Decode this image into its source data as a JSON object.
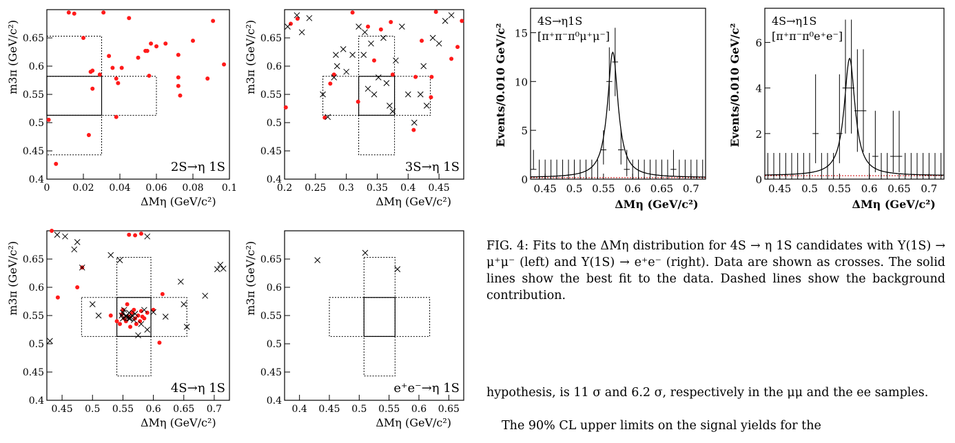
{
  "text": {
    "caption": "FIG. 4: Fits to the ΔMη distribution for 4S → η 1S candidates with Υ(1S) → μ⁺μ⁻ (left) and Υ(1S) → e⁺e⁻ (right). Data are shown as crosses. The solid lines show the best fit to the data. Dashed lines show the background contribution.",
    "paragraph_1": "hypothesis, is 11 σ and 6.2 σ, respectively in the μμ and the ee samples.",
    "paragraph_2": "The 90% CL upper limits on the signal yields for the"
  },
  "colors": {
    "signal_points": "#ff1a1a",
    "background_points": "#000000",
    "bkg_line": "#cc0000"
  },
  "chart_data": [
    {
      "type": "scatter",
      "label": "2S→η 1S",
      "xlabel": "ΔMη   (GeV/c²)",
      "ylabel": "m3π   (GeV/c²)",
      "xlim": [
        0,
        0.1
      ],
      "ylim": [
        0.4,
        0.7
      ],
      "xticks": [
        "0",
        "0.02",
        "0.04",
        "0.06",
        "0.08",
        "0.1"
      ],
      "yticks": [
        "0.4",
        "0.45",
        "0.5",
        "0.55",
        "0.6",
        "0.65"
      ],
      "boxes": {
        "solid": [
          0,
          0.03,
          0.513,
          0.582
        ],
        "dotted": [
          [
            0,
            0.03,
            0.443,
            0.653
          ],
          [
            0,
            0.06,
            0.513,
            0.582
          ]
        ]
      },
      "series": [
        {
          "marker": "dot",
          "x": [
            0.001,
            0.005,
            0.012,
            0.015,
            0.02,
            0.023,
            0.024,
            0.025,
            0.025,
            0.029,
            0.031,
            0.034,
            0.036,
            0.038,
            0.038,
            0.039,
            0.041,
            0.045,
            0.05,
            0.054,
            0.055,
            0.057,
            0.056,
            0.06,
            0.065,
            0.072,
            0.072,
            0.072,
            0.073,
            0.08,
            0.088,
            0.091,
            0.097
          ],
          "y": [
            0.505,
            0.427,
            0.695,
            0.693,
            0.65,
            0.478,
            0.59,
            0.592,
            0.56,
            0.585,
            0.695,
            0.618,
            0.597,
            0.578,
            0.51,
            0.57,
            0.597,
            0.685,
            0.615,
            0.627,
            0.627,
            0.64,
            0.583,
            0.635,
            0.64,
            0.62,
            0.58,
            0.565,
            0.548,
            0.645,
            0.578,
            0.68,
            0.603
          ]
        }
      ]
    },
    {
      "type": "scatter",
      "label": "3S→η 1S",
      "xlabel": "ΔMη   (GeV/c²)",
      "ylabel": "m3π   (GeV/c²)",
      "xlim": [
        0.2,
        0.49
      ],
      "ylim": [
        0.4,
        0.7
      ],
      "xticks": [
        "0.2",
        "0.25",
        "0.3",
        "0.35",
        "0.4",
        "0.45"
      ],
      "yticks": [
        "0.4",
        "0.45",
        "0.5",
        "0.55",
        "0.6",
        "0.65"
      ],
      "boxes": {
        "solid": [
          0.32,
          0.378,
          0.513,
          0.582
        ],
        "dotted": [
          [
            0.32,
            0.378,
            0.443,
            0.653
          ],
          [
            0.262,
            0.436,
            0.513,
            0.582
          ]
        ]
      },
      "series": [
        {
          "marker": "dot",
          "x": [
            0.202,
            0.21,
            0.221,
            0.265,
            0.274,
            0.28,
            0.31,
            0.319,
            0.335,
            0.345,
            0.356,
            0.372,
            0.375,
            0.409,
            0.412,
            0.422,
            0.437,
            0.438,
            0.445,
            0.47,
            0.48,
            0.487
          ],
          "y": [
            0.527,
            0.675,
            0.684,
            0.509,
            0.569,
            0.585,
            0.695,
            0.537,
            0.67,
            0.61,
            0.665,
            0.678,
            0.585,
            0.487,
            0.581,
            0.645,
            0.545,
            0.581,
            0.696,
            0.613,
            0.634,
            0.68
          ]
        },
        {
          "marker": "cross",
          "x": [
            0.205,
            0.22,
            0.228,
            0.24,
            0.262,
            0.27,
            0.28,
            0.283,
            0.285,
            0.295,
            0.3,
            0.31,
            0.32,
            0.328,
            0.33,
            0.335,
            0.34,
            0.345,
            0.352,
            0.36,
            0.365,
            0.37,
            0.375,
            0.38,
            0.39,
            0.4,
            0.41,
            0.42,
            0.425,
            0.43,
            0.44,
            0.45,
            0.46,
            0.47
          ],
          "y": [
            0.67,
            0.69,
            0.66,
            0.685,
            0.55,
            0.51,
            0.58,
            0.62,
            0.6,
            0.63,
            0.59,
            0.62,
            0.67,
            0.62,
            0.66,
            0.56,
            0.64,
            0.55,
            0.58,
            0.65,
            0.57,
            0.53,
            0.52,
            0.61,
            0.67,
            0.55,
            0.5,
            0.55,
            0.6,
            0.53,
            0.65,
            0.64,
            0.68,
            0.69
          ]
        }
      ]
    },
    {
      "type": "scatter",
      "label": "4S→η 1S",
      "xlabel": "ΔMη   (GeV/c²)",
      "ylabel": "m3π   (GeV/c²)",
      "xlim": [
        0.425,
        0.725
      ],
      "ylim": [
        0.4,
        0.7
      ],
      "xticks": [
        "0.45",
        "0.5",
        "0.55",
        "0.6",
        "0.65",
        "0.7"
      ],
      "yticks": [
        "0.4",
        "0.45",
        "0.5",
        "0.55",
        "0.6",
        "0.65"
      ],
      "boxes": {
        "solid": [
          0.54,
          0.596,
          0.513,
          0.582
        ],
        "dotted": [
          [
            0.54,
            0.596,
            0.443,
            0.653
          ],
          [
            0.482,
            0.655,
            0.513,
            0.582
          ]
        ]
      },
      "series": [
        {
          "marker": "dot",
          "x": [
            0.433,
            0.443,
            0.475,
            0.483,
            0.53,
            0.54,
            0.545,
            0.548,
            0.55,
            0.552,
            0.555,
            0.557,
            0.56,
            0.562,
            0.565,
            0.568,
            0.57,
            0.572,
            0.575,
            0.578,
            0.58,
            0.582,
            0.585,
            0.59,
            0.6,
            0.61,
            0.615,
            0.56,
            0.57,
            0.58
          ],
          "y": [
            0.7,
            0.582,
            0.6,
            0.635,
            0.55,
            0.54,
            0.535,
            0.552,
            0.56,
            0.545,
            0.54,
            0.57,
            0.548,
            0.53,
            0.555,
            0.56,
            0.545,
            0.535,
            0.55,
            0.54,
            0.558,
            0.548,
            0.545,
            0.555,
            0.56,
            0.502,
            0.588,
            0.693,
            0.692,
            0.695
          ],
          "note": "cluster near signal region"
        },
        {
          "marker": "cross",
          "x": [
            0.43,
            0.442,
            0.455,
            0.47,
            0.475,
            0.483,
            0.5,
            0.51,
            0.53,
            0.545,
            0.548,
            0.55,
            0.552,
            0.555,
            0.558,
            0.56,
            0.562,
            0.565,
            0.568,
            0.57,
            0.575,
            0.58,
            0.585,
            0.59,
            0.6,
            0.62,
            0.645,
            0.65,
            0.655,
            0.685,
            0.705,
            0.71,
            0.715,
            0.55,
            0.56,
            0.59
          ],
          "y": [
            0.505,
            0.693,
            0.69,
            0.667,
            0.68,
            0.635,
            0.57,
            0.55,
            0.657,
            0.648,
            0.55,
            0.545,
            0.56,
            0.548,
            0.547,
            0.555,
            0.545,
            0.55,
            0.542,
            0.553,
            0.515,
            0.535,
            0.56,
            0.525,
            0.556,
            0.548,
            0.61,
            0.57,
            0.53,
            0.585,
            0.632,
            0.64,
            0.633,
            0.555,
            0.545,
            0.69
          ]
        }
      ]
    },
    {
      "type": "scatter",
      "label": "e⁺e⁻→η 1S",
      "xlabel": "ΔMη   (GeV/c²)",
      "ylabel": "m3π   (GeV/c²)",
      "xlim": [
        0.375,
        0.675
      ],
      "ylim": [
        0.4,
        0.7
      ],
      "xticks": [
        "0.4",
        "0.45",
        "0.5",
        "0.55",
        "0.6",
        "0.65"
      ],
      "yticks": [
        "0.4",
        "0.45",
        "0.5",
        "0.55",
        "0.6",
        "0.65"
      ],
      "boxes": {
        "solid": [
          0.508,
          0.56,
          0.513,
          0.582
        ],
        "dotted": [
          [
            0.508,
            0.56,
            0.443,
            0.653
          ],
          [
            0.45,
            0.618,
            0.513,
            0.582
          ]
        ]
      },
      "series": [
        {
          "marker": "cross",
          "x": [
            0.43,
            0.51,
            0.564
          ],
          "y": [
            0.648,
            0.661,
            0.632
          ]
        }
      ]
    },
    {
      "type": "line",
      "label": "4S→η1S",
      "sublabel": "[π⁺π⁻π⁰μ⁺μ⁻]",
      "xlabel": "ΔMη (GeV/c²)",
      "ylabel": "Events/0.010 GeV/c²",
      "xlim": [
        0.425,
        0.725
      ],
      "ylim": [
        0,
        17.5
      ],
      "xticks": [
        "0.45",
        "0.5",
        "0.55",
        "0.6",
        "0.65",
        "0.7"
      ],
      "yticks": [
        "0",
        "5",
        "10",
        "15"
      ],
      "points": [
        {
          "x": 0.43,
          "y": 1,
          "err": [
            1,
            3
          ]
        },
        {
          "x": 0.44,
          "y": 0,
          "err": [
            0,
            2
          ]
        },
        {
          "x": 0.45,
          "y": 0,
          "err": [
            0,
            2
          ]
        },
        {
          "x": 0.46,
          "y": 0,
          "err": [
            0,
            2
          ]
        },
        {
          "x": 0.47,
          "y": 0,
          "err": [
            0,
            2
          ]
        },
        {
          "x": 0.48,
          "y": 0,
          "err": [
            0,
            2
          ]
        },
        {
          "x": 0.49,
          "y": 0,
          "err": [
            0,
            2
          ]
        },
        {
          "x": 0.5,
          "y": 0,
          "err": [
            0,
            2
          ]
        },
        {
          "x": 0.51,
          "y": 0,
          "err": [
            0,
            2
          ]
        },
        {
          "x": 0.52,
          "y": 0,
          "err": [
            0,
            2
          ]
        },
        {
          "x": 0.53,
          "y": 0,
          "err": [
            0,
            2
          ]
        },
        {
          "x": 0.54,
          "y": 0,
          "err": [
            0,
            2
          ]
        },
        {
          "x": 0.55,
          "y": 3,
          "err": [
            1.5,
            5
          ]
        },
        {
          "x": 0.56,
          "y": 10,
          "err": [
            7,
            13.5
          ]
        },
        {
          "x": 0.57,
          "y": 12,
          "err": [
            8.5,
            15.5
          ]
        },
        {
          "x": 0.58,
          "y": 3,
          "err": [
            1.5,
            5
          ]
        },
        {
          "x": 0.59,
          "y": 1,
          "err": [
            0.3,
            3
          ]
        },
        {
          "x": 0.6,
          "y": 0,
          "err": [
            0,
            2
          ]
        },
        {
          "x": 0.61,
          "y": 0,
          "err": [
            0,
            2
          ]
        },
        {
          "x": 0.62,
          "y": 0,
          "err": [
            0,
            2
          ]
        },
        {
          "x": 0.63,
          "y": 0,
          "err": [
            0,
            2
          ]
        },
        {
          "x": 0.64,
          "y": 0,
          "err": [
            0,
            2
          ]
        },
        {
          "x": 0.65,
          "y": 0,
          "err": [
            0,
            2
          ]
        },
        {
          "x": 0.66,
          "y": 0,
          "err": [
            0,
            2
          ]
        },
        {
          "x": 0.67,
          "y": 1,
          "err": [
            0.3,
            3
          ]
        },
        {
          "x": 0.68,
          "y": 0,
          "err": [
            0,
            2
          ]
        },
        {
          "x": 0.69,
          "y": 0,
          "err": [
            0,
            2
          ]
        },
        {
          "x": 0.7,
          "y": 0,
          "err": [
            0,
            2
          ]
        },
        {
          "x": 0.71,
          "y": 0,
          "err": [
            0,
            2
          ]
        },
        {
          "x": 0.72,
          "y": 0,
          "err": [
            0,
            2
          ]
        }
      ],
      "fit": {
        "peak_x": 0.566,
        "peak_y": 13,
        "width": 0.011,
        "background": 0.15
      }
    },
    {
      "type": "line",
      "label": "4S→η1S",
      "sublabel": "[π⁺π⁻π⁰e⁺e⁻]",
      "xlabel": "ΔMη (GeV/c²)",
      "ylabel": "Events/0.010 GeV/c²",
      "xlim": [
        0.425,
        0.725
      ],
      "ylim": [
        0,
        7.5
      ],
      "xticks": [
        "0.45",
        "0.5",
        "0.55",
        "0.6",
        "0.65",
        "0.7"
      ],
      "yticks": [
        "0",
        "2",
        "4",
        "6"
      ],
      "points": [
        {
          "x": 0.43,
          "y": 0,
          "err": [
            0,
            1.15
          ]
        },
        {
          "x": 0.44,
          "y": 0,
          "err": [
            0,
            1.15
          ]
        },
        {
          "x": 0.45,
          "y": 0,
          "err": [
            0,
            1.15
          ]
        },
        {
          "x": 0.46,
          "y": 0,
          "err": [
            0,
            1.15
          ]
        },
        {
          "x": 0.47,
          "y": 0,
          "err": [
            0,
            1.15
          ]
        },
        {
          "x": 0.48,
          "y": 0,
          "err": [
            0,
            1.15
          ]
        },
        {
          "x": 0.49,
          "y": 0,
          "err": [
            0,
            1.15
          ]
        },
        {
          "x": 0.5,
          "y": 0,
          "err": [
            0,
            1.15
          ]
        },
        {
          "x": 0.51,
          "y": 2,
          "err": [
            0.7,
            4.6
          ]
        },
        {
          "x": 0.52,
          "y": 0,
          "err": [
            0,
            1.15
          ]
        },
        {
          "x": 0.53,
          "y": 0,
          "err": [
            0,
            1.15
          ]
        },
        {
          "x": 0.54,
          "y": 0,
          "err": [
            0,
            1.15
          ]
        },
        {
          "x": 0.55,
          "y": 2,
          "err": [
            0.7,
            4.6
          ]
        },
        {
          "x": 0.56,
          "y": 4,
          "err": [
            2,
            7
          ]
        },
        {
          "x": 0.57,
          "y": 4,
          "err": [
            2,
            7
          ]
        },
        {
          "x": 0.58,
          "y": 3,
          "err": [
            1.2,
            5.7
          ]
        },
        {
          "x": 0.59,
          "y": 3,
          "err": [
            1.2,
            5.7
          ]
        },
        {
          "x": 0.6,
          "y": 0,
          "err": [
            0,
            1.15
          ]
        },
        {
          "x": 0.61,
          "y": 1,
          "err": [
            0.3,
            3
          ]
        },
        {
          "x": 0.62,
          "y": 0,
          "err": [
            0,
            1.15
          ]
        },
        {
          "x": 0.63,
          "y": 0,
          "err": [
            0,
            1.15
          ]
        },
        {
          "x": 0.64,
          "y": 1,
          "err": [
            0.3,
            3
          ]
        },
        {
          "x": 0.65,
          "y": 1,
          "err": [
            0.3,
            3
          ]
        },
        {
          "x": 0.66,
          "y": 0,
          "err": [
            0,
            1.15
          ]
        },
        {
          "x": 0.67,
          "y": 0,
          "err": [
            0,
            1.15
          ]
        },
        {
          "x": 0.68,
          "y": 0,
          "err": [
            0,
            1.15
          ]
        },
        {
          "x": 0.69,
          "y": 0,
          "err": [
            0,
            1.15
          ]
        },
        {
          "x": 0.7,
          "y": 0,
          "err": [
            0,
            1.15
          ]
        },
        {
          "x": 0.71,
          "y": 0,
          "err": [
            0,
            1.15
          ]
        },
        {
          "x": 0.72,
          "y": 0,
          "err": [
            0,
            1.15
          ]
        }
      ],
      "fit": {
        "peak_x": 0.567,
        "peak_y": 5.3,
        "width": 0.011,
        "background": 0.15
      }
    }
  ]
}
